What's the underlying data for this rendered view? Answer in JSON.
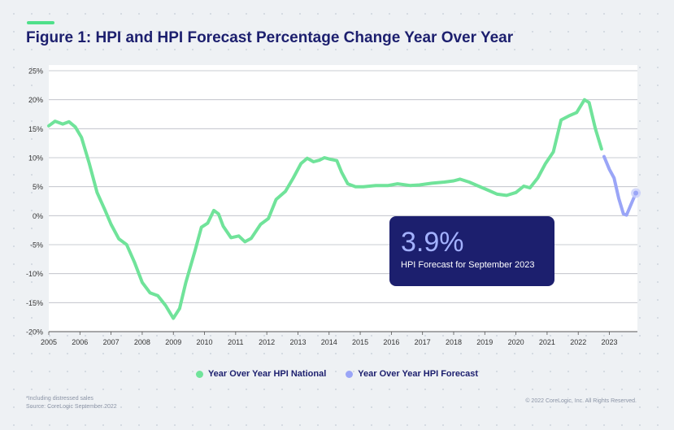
{
  "title": "Figure 1: HPI and HPI Forecast Percentage Change Year Over Year",
  "callout": {
    "value": "3.9%",
    "label": "HPI Forecast for September 2023"
  },
  "legend": [
    {
      "label": "Year Over Year HPI National",
      "color": "#70e39a"
    },
    {
      "label": "Year Over Year HPI Forecast",
      "color": "#9aa5f7"
    }
  ],
  "footnote": {
    "line1": "*Including distressed sales",
    "line2": "Source: CoreLogic September 2022"
  },
  "copyright": "© 2022 CoreLogic, Inc. All Rights Reserved.",
  "chart_data": {
    "type": "line",
    "title": "Figure 1: HPI and HPI Forecast Percentage Change Year Over Year",
    "xlabel": "",
    "ylabel": "",
    "xlim": [
      2005,
      2023.9
    ],
    "ylim": [
      -20,
      25
    ],
    "yticks": [
      25,
      20,
      15,
      10,
      5,
      0,
      -5,
      -10,
      -15,
      -20
    ],
    "ytick_labels": [
      "25%",
      "20%",
      "15%",
      "10%",
      "5%",
      "0%",
      "-5%",
      "-10%",
      "-15%",
      "-20%"
    ],
    "xtick_labels": [
      "2005",
      "2006",
      "2007",
      "2008",
      "2009",
      "2010",
      "2011",
      "2012",
      "2013",
      "2014",
      "2015",
      "2016",
      "2017",
      "2018",
      "2019",
      "2020",
      "2021",
      "2022",
      "2023"
    ],
    "grid": "horizontal",
    "legend_position": "bottom-center",
    "series": [
      {
        "name": "Year Over Year HPI National",
        "color": "#70e39a",
        "points": [
          [
            2005.0,
            15.5
          ],
          [
            2005.2,
            16.3
          ],
          [
            2005.45,
            15.8
          ],
          [
            2005.65,
            16.2
          ],
          [
            2005.85,
            15.3
          ],
          [
            2006.05,
            13.5
          ],
          [
            2006.3,
            9.0
          ],
          [
            2006.55,
            4.0
          ],
          [
            2006.8,
            1.0
          ],
          [
            2007.0,
            -1.5
          ],
          [
            2007.25,
            -4.0
          ],
          [
            2007.5,
            -5.0
          ],
          [
            2007.75,
            -8.0
          ],
          [
            2008.0,
            -11.5
          ],
          [
            2008.25,
            -13.3
          ],
          [
            2008.5,
            -13.8
          ],
          [
            2008.75,
            -15.5
          ],
          [
            2009.0,
            -17.7
          ],
          [
            2009.2,
            -16.0
          ],
          [
            2009.4,
            -11.5
          ],
          [
            2009.7,
            -6.0
          ],
          [
            2009.9,
            -2.0
          ],
          [
            2010.1,
            -1.3
          ],
          [
            2010.3,
            0.9
          ],
          [
            2010.45,
            0.3
          ],
          [
            2010.6,
            -1.8
          ],
          [
            2010.85,
            -3.8
          ],
          [
            2011.1,
            -3.5
          ],
          [
            2011.3,
            -4.5
          ],
          [
            2011.5,
            -3.9
          ],
          [
            2011.8,
            -1.5
          ],
          [
            2012.05,
            -0.5
          ],
          [
            2012.3,
            2.8
          ],
          [
            2012.6,
            4.2
          ],
          [
            2012.85,
            6.5
          ],
          [
            2013.1,
            9.0
          ],
          [
            2013.3,
            9.9
          ],
          [
            2013.5,
            9.3
          ],
          [
            2013.7,
            9.6
          ],
          [
            2013.85,
            10.0
          ],
          [
            2014.05,
            9.7
          ],
          [
            2014.25,
            9.5
          ],
          [
            2014.4,
            7.5
          ],
          [
            2014.6,
            5.5
          ],
          [
            2014.85,
            5.0
          ],
          [
            2015.1,
            5.0
          ],
          [
            2015.5,
            5.2
          ],
          [
            2015.9,
            5.2
          ],
          [
            2016.2,
            5.5
          ],
          [
            2016.6,
            5.2
          ],
          [
            2016.9,
            5.3
          ],
          [
            2017.3,
            5.6
          ],
          [
            2017.7,
            5.8
          ],
          [
            2018.0,
            6.0
          ],
          [
            2018.2,
            6.3
          ],
          [
            2018.5,
            5.8
          ],
          [
            2018.8,
            5.1
          ],
          [
            2019.1,
            4.4
          ],
          [
            2019.4,
            3.7
          ],
          [
            2019.7,
            3.5
          ],
          [
            2020.0,
            4.0
          ],
          [
            2020.25,
            5.1
          ],
          [
            2020.45,
            4.8
          ],
          [
            2020.7,
            6.5
          ],
          [
            2020.95,
            9.0
          ],
          [
            2021.2,
            11.0
          ],
          [
            2021.45,
            16.5
          ],
          [
            2021.7,
            17.2
          ],
          [
            2021.95,
            17.8
          ],
          [
            2022.2,
            20.0
          ],
          [
            2022.35,
            19.5
          ],
          [
            2022.55,
            15.0
          ],
          [
            2022.75,
            11.5
          ]
        ]
      },
      {
        "name": "Year Over Year HPI Forecast",
        "color": "#9aa5f7",
        "points": [
          [
            2022.83,
            10.2
          ],
          [
            2023.0,
            8.0
          ],
          [
            2023.15,
            6.5
          ],
          [
            2023.3,
            3.0
          ],
          [
            2023.45,
            0.3
          ],
          [
            2023.55,
            0.1
          ],
          [
            2023.7,
            2.0
          ],
          [
            2023.85,
            3.9
          ]
        ]
      }
    ]
  }
}
